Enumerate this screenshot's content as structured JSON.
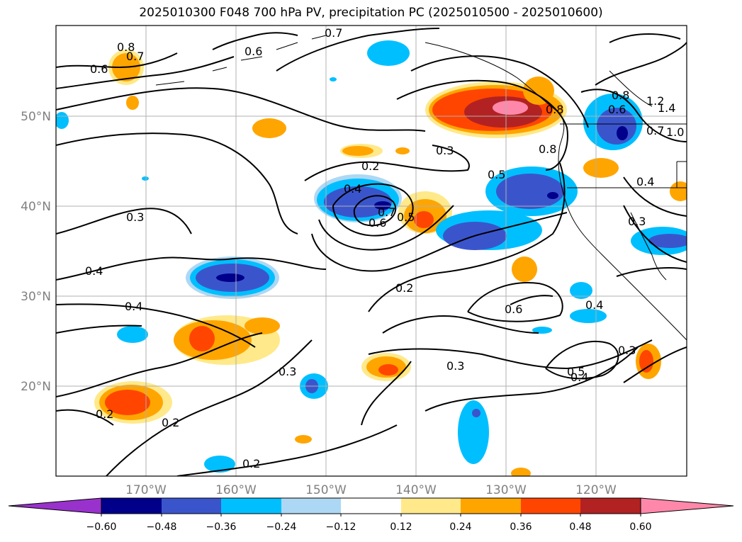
{
  "title": "2025010300 F048 700 hPa PV, precipitation PC (2025010500 - 2025010600)",
  "map": {
    "lat_ticks": [
      "50°N",
      "40°N",
      "30°N",
      "20°N"
    ],
    "lon_ticks": [
      "170°W",
      "160°W",
      "150°W",
      "140°W",
      "130°W",
      "120°W"
    ],
    "gridlines": true
  },
  "colorbar": {
    "levels": [
      "−0.60",
      "−0.48",
      "−0.36",
      "−0.24",
      "−0.12",
      "0.12",
      "0.24",
      "0.36",
      "0.48",
      "0.60"
    ],
    "colors": [
      "#9932cc",
      "#00008b",
      "#3a55cc",
      "#00bfff",
      "#add8f5",
      "#ffffff",
      "#ffe98a",
      "#ffa500",
      "#ff4500",
      "#b22222",
      "#ff88aa"
    ]
  },
  "contour_labels": [
    "0.8",
    "0.7",
    "0.6",
    "0.7",
    "0.6",
    "0.3",
    "0.2",
    "0.4",
    "0.7",
    "0.6",
    "0.5",
    "0.5",
    "0.3",
    "0.4",
    "0.4",
    "0.2",
    "0.6",
    "0.3",
    "0.5",
    "0.4",
    "0.3",
    "0.2",
    "0.2",
    "0.2",
    "0.3",
    "0.4",
    "0.8",
    "0.6",
    "0.7",
    "1.2",
    "1.4",
    "1.0",
    "0.8",
    "0.3",
    "0.4",
    "0.8"
  ]
}
